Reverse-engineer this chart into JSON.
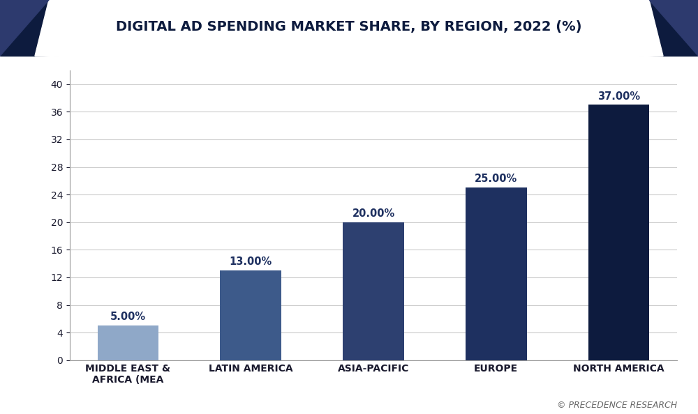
{
  "title": "DIGITAL AD SPENDING MARKET SHARE, BY REGION, 2022 (%)",
  "categories": [
    "MIDDLE EAST &\nAFRICA (MEA",
    "LATIN AMERICA",
    "ASIA-PACIFIC",
    "EUROPE",
    "NORTH AMERICA"
  ],
  "values": [
    5.0,
    13.0,
    20.0,
    25.0,
    37.0
  ],
  "labels": [
    "5.00%",
    "13.00%",
    "20.00%",
    "25.00%",
    "37.00%"
  ],
  "bar_colors": [
    "#8fa8c8",
    "#3d5a8a",
    "#2d4070",
    "#1e3060",
    "#0d1b3e"
  ],
  "background_color": "#ffffff",
  "plot_bg_color": "#ffffff",
  "title_color": "#0d1b3e",
  "axis_color": "#1a1a2e",
  "yticks": [
    0,
    4,
    8,
    12,
    16,
    20,
    24,
    28,
    32,
    36,
    40
  ],
  "ylim": [
    0,
    42
  ],
  "grid_color": "#cccccc",
  "label_color": "#1e3060",
  "header_bg_color": "#0d1b3e",
  "header_accent_color": "#2d3a6e",
  "title_fontsize": 14,
  "tick_fontsize": 10,
  "label_fontsize": 10.5,
  "bar_width": 0.5,
  "watermark": "© PRECEDENCE RESEARCH",
  "watermark_color": "#666666"
}
